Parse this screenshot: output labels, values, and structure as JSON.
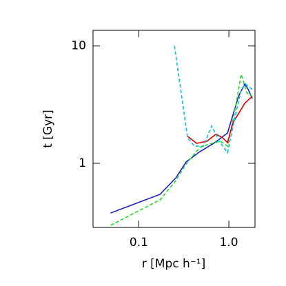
{
  "chart_data": {
    "type": "line",
    "x_label": "r [Mpc h⁻¹]",
    "y_label": "t [Gyr]",
    "xlog": true,
    "ylog": true,
    "xlim": [
      0.031,
      1.95
    ],
    "ylim": [
      0.284,
      13.6
    ],
    "xticks": [
      0.1,
      {
        "value": 1,
        "label": "1.0"
      }
    ],
    "yticks": [
      1,
      10
    ],
    "series": [
      {
        "name": "blue",
        "color": "#1c1cc8",
        "style": "solid",
        "x": [
          0.0486,
          0.172,
          0.258,
          0.336,
          0.478,
          0.679,
          0.966,
          1.28,
          1.5,
          1.64,
          1.82
        ],
        "values": [
          0.377,
          0.544,
          0.752,
          1.03,
          1.26,
          1.48,
          1.81,
          3.72,
          4.75,
          4.26,
          3.57
        ]
      },
      {
        "name": "green",
        "color": "#22dd22",
        "style": "dashed",
        "x": [
          0.0486,
          0.172,
          0.258,
          0.336,
          0.478,
          0.679,
          0.81,
          0.966,
          1.15,
          1.37,
          1.58,
          1.82
        ],
        "values": [
          0.296,
          0.488,
          0.713,
          0.99,
          1.37,
          1.5,
          1.54,
          1.4,
          2.65,
          5.74,
          3.98,
          3.72
        ]
      },
      {
        "name": "red",
        "color": "#dd0000",
        "style": "solid",
        "x": [
          0.348,
          0.438,
          0.57,
          0.716,
          0.853,
          0.966,
          1.11,
          1.28,
          1.5,
          1.82
        ],
        "values": [
          1.7,
          1.48,
          1.54,
          1.77,
          1.65,
          1.5,
          2.22,
          2.65,
          3.25,
          3.72
        ]
      },
      {
        "name": "cyan",
        "color": "#11bbdd",
        "style": "dashed",
        "x": [
          0.249,
          0.348,
          0.415,
          0.522,
          0.644,
          0.782,
          0.966,
          1.15,
          1.37,
          1.52,
          1.82
        ],
        "values": [
          10.0,
          1.65,
          1.4,
          1.4,
          2.08,
          1.54,
          1.23,
          2.32,
          4.26,
          4.75,
          4.26
        ]
      }
    ]
  }
}
